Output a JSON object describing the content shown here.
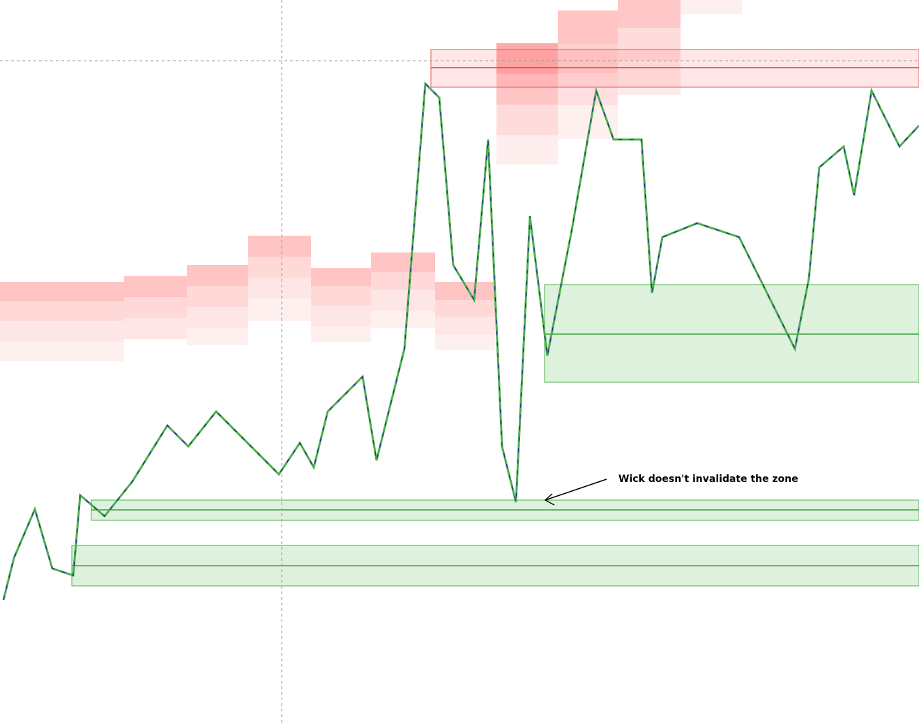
{
  "annotation": {
    "text": "Wick doesn't invalidate the zone"
  }
}
